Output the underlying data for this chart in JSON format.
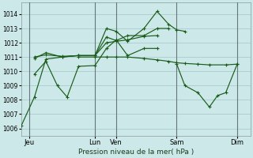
{
  "background_color": "#cce8e8",
  "grid_color": "#aacccc",
  "line_color": "#1a5c1a",
  "xlabel_text": "Pression niveau de la mer( hPa )",
  "ylim": [
    1005.5,
    1014.8
  ],
  "yticks": [
    1006,
    1007,
    1008,
    1009,
    1010,
    1011,
    1012,
    1013,
    1014
  ],
  "xlim": [
    0,
    14.0
  ],
  "xtick_labels": [
    "Jeu",
    "Lun",
    "Ven",
    "Sam",
    "Dim"
  ],
  "xtick_positions": [
    0.5,
    4.5,
    5.8,
    9.5,
    13.2
  ],
  "vlines": [
    0.5,
    4.5,
    5.8,
    9.5,
    13.2
  ],
  "series": [
    {
      "x": [
        0.0,
        0.8,
        1.5,
        2.5,
        3.5,
        4.5,
        5.2,
        5.8,
        6.5,
        7.5,
        8.3,
        9.0,
        9.5,
        10.0
      ],
      "y": [
        1006.2,
        1008.2,
        1010.85,
        1011.0,
        1011.1,
        1011.1,
        1013.0,
        1012.8,
        1012.1,
        1013.0,
        1014.2,
        1013.3,
        1012.9,
        1012.8
      ]
    },
    {
      "x": [
        0.8,
        1.5,
        2.5,
        3.5,
        4.5,
        5.2,
        5.8,
        6.5,
        7.5,
        8.3,
        9.0
      ],
      "y": [
        1010.9,
        1011.3,
        1011.0,
        1011.1,
        1011.1,
        1012.4,
        1012.15,
        1012.5,
        1012.5,
        1013.0,
        1013.0
      ]
    },
    {
      "x": [
        0.8,
        1.5,
        2.5,
        3.5,
        4.5,
        5.2,
        5.8,
        6.5,
        7.5,
        8.3
      ],
      "y": [
        1011.0,
        1011.15,
        1011.05,
        1011.1,
        1011.1,
        1012.0,
        1012.1,
        1012.2,
        1012.45,
        1012.5
      ]
    },
    {
      "x": [
        3.5,
        4.5,
        5.2,
        5.8,
        6.5,
        7.5,
        8.3,
        9.0,
        9.5,
        10.0,
        10.8,
        11.5,
        12.5,
        13.2
      ],
      "y": [
        1011.0,
        1011.0,
        1011.0,
        1011.0,
        1011.0,
        1010.9,
        1010.8,
        1010.7,
        1010.6,
        1010.55,
        1010.5,
        1010.45,
        1010.45,
        1010.5
      ]
    },
    {
      "x": [
        0.8,
        1.5,
        2.2,
        2.8,
        3.5,
        4.5,
        5.2,
        5.8,
        6.5,
        7.5,
        8.3
      ],
      "y": [
        1009.8,
        1010.7,
        1009.0,
        1008.2,
        1010.35,
        1010.4,
        1011.6,
        1012.2,
        1011.1,
        1011.6,
        1011.6
      ]
    },
    {
      "x": [
        9.5,
        10.0,
        10.8,
        11.5,
        12.0,
        12.5,
        13.2
      ],
      "y": [
        1010.5,
        1009.0,
        1008.5,
        1007.5,
        1008.3,
        1008.5,
        1010.5
      ]
    }
  ]
}
